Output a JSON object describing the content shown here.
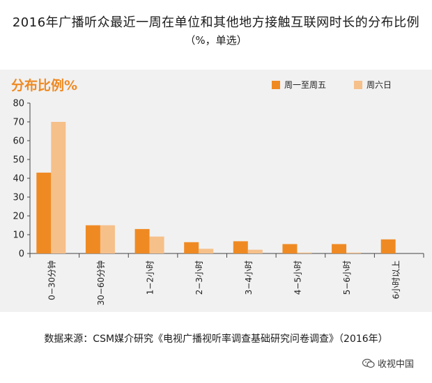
{
  "header": {
    "title": "2016年广播听众最近一周在单位和其他地方接触互联网时长的分布比例",
    "subtitle": "（%，单选）"
  },
  "panel_label": "分布比例%",
  "source_note": "数据来源：CSM媒介研究《电视广播视听率调查基础研究问卷调查》（2016年）",
  "watermark": {
    "text": "收视中国",
    "icon": "wechat-icon"
  },
  "colors": {
    "series1": "#ef8a23",
    "series2": "#f6c08a",
    "panel_bg": "#f1f1f1",
    "label": "#ef8a23"
  },
  "chart_data": {
    "type": "bar",
    "categories": [
      "0−30分钟",
      "30−60分钟",
      "1−2小时",
      "2−3小时",
      "3−4小时",
      "4−5小时",
      "5−6小时",
      "6小时以上"
    ],
    "series": [
      {
        "name": "周一至周五",
        "values": [
          43,
          15,
          13,
          6,
          6.5,
          5,
          5,
          7.5
        ]
      },
      {
        "name": "周六日",
        "values": [
          70,
          15,
          9,
          2.5,
          2,
          0.5,
          0.5,
          0
        ]
      }
    ],
    "ylim": [
      0,
      80
    ],
    "yticks": [
      0,
      10,
      20,
      30,
      40,
      50,
      60,
      70,
      80
    ],
    "legend_position": "top-right",
    "grid": false
  }
}
